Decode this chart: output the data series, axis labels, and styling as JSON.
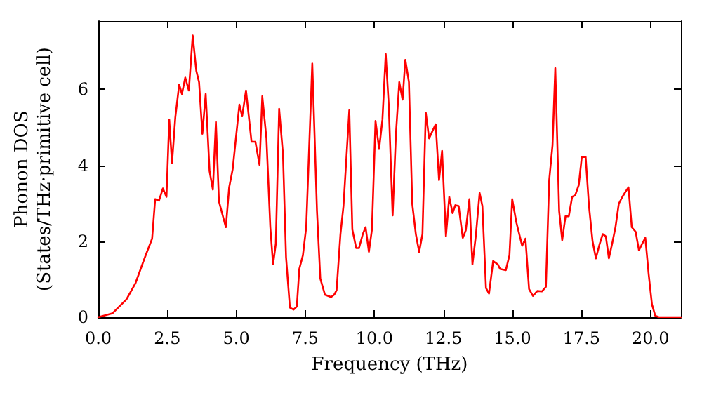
{
  "chart_data": {
    "type": "line",
    "xlabel": "Frequency (THz)",
    "ylabel": "Phonon DOS\n(States/THz·primitive cell)",
    "xlim": [
      0,
      21.1
    ],
    "ylim": [
      0,
      7.8
    ],
    "xticks": [
      {
        "value": 0,
        "label": "0.0"
      },
      {
        "value": 2.5,
        "label": "2.5"
      },
      {
        "value": 5,
        "label": "5.0"
      },
      {
        "value": 7.5,
        "label": "7.5"
      },
      {
        "value": 10,
        "label": "10.0"
      },
      {
        "value": 12.5,
        "label": "12.5"
      },
      {
        "value": 15,
        "label": "15.0"
      },
      {
        "value": 17.5,
        "label": "17.5"
      },
      {
        "value": 20,
        "label": "20.0"
      }
    ],
    "yticks": [
      0,
      2,
      4,
      6
    ],
    "grid": false,
    "marker": "none",
    "line_style": "solid",
    "series": [
      {
        "color": "#ff0000",
        "x": [
          0,
          0.51,
          1.02,
          1.35,
          1.69,
          1.95,
          2.06,
          2.2,
          2.34,
          2.47,
          2.57,
          2.67,
          2.79,
          2.93,
          3.03,
          3.15,
          3.28,
          3.42,
          3.55,
          3.65,
          3.77,
          3.89,
          4.03,
          4.15,
          4.26,
          4.37,
          4.62,
          4.74,
          4.87,
          5.11,
          5.21,
          5.35,
          5.55,
          5.69,
          5.84,
          5.94,
          6.09,
          6.23,
          6.33,
          6.43,
          6.55,
          6.69,
          6.8,
          6.94,
          7.07,
          7.19,
          7.28,
          7.41,
          7.53,
          7.75,
          7.92,
          8.04,
          8.21,
          8.43,
          8.54,
          8.63,
          8.77,
          8.88,
          9.09,
          9.2,
          9.34,
          9.44,
          9.58,
          9.68,
          9.8,
          9.91,
          10.04,
          10.17,
          10.29,
          10.41,
          10.52,
          10.66,
          10.78,
          10.9,
          11.02,
          11.12,
          11.25,
          11.37,
          11.5,
          11.62,
          11.74,
          11.86,
          11.98,
          12.1,
          12.22,
          12.34,
          12.45,
          12.59,
          12.71,
          12.83,
          12.93,
          13.05,
          13.2,
          13.31,
          13.44,
          13.55,
          13.67,
          13.81,
          13.91,
          14.04,
          14.15,
          14.3,
          14.47,
          14.55,
          14.76,
          14.89,
          14.99,
          15.14,
          15.35,
          15.47,
          15.6,
          15.74,
          15.9,
          16.07,
          16.21,
          16.33,
          16.45,
          16.55,
          16.69,
          16.8,
          16.92,
          17.04,
          17.16,
          17.27,
          17.4,
          17.51,
          17.65,
          17.77,
          17.9,
          18.02,
          18.16,
          18.27,
          18.38,
          18.49,
          18.61,
          18.73,
          18.85,
          18.98,
          19.09,
          19.2,
          19.32,
          19.46,
          19.58,
          19.7,
          19.81,
          19.93,
          20.05,
          20.17,
          20.3,
          21.1
        ],
        "values": [
          0,
          0.1,
          0.47,
          0.9,
          1.58,
          2.07,
          3.11,
          3.07,
          3.39,
          3.17,
          5.2,
          4.06,
          5.26,
          6.13,
          5.88,
          6.31,
          5.97,
          7.42,
          6.49,
          6.19,
          4.83,
          5.88,
          3.85,
          3.36,
          5.14,
          3.05,
          2.37,
          3.42,
          3.91,
          5.6,
          5.29,
          5.97,
          4.62,
          4.62,
          4.01,
          5.82,
          4.71,
          2.37,
          1.39,
          1.94,
          5.49,
          4.28,
          1.58,
          0.25,
          0.2,
          0.28,
          1.27,
          1.63,
          2.37,
          6.68,
          2.8,
          1.02,
          0.59,
          0.53,
          0.59,
          0.71,
          2.19,
          2.93,
          5.45,
          2.31,
          1.82,
          1.82,
          2.19,
          2.37,
          1.72,
          2.31,
          5.17,
          4.43,
          5.2,
          6.93,
          5.57,
          2.68,
          4.83,
          6.19,
          5.73,
          6.78,
          6.19,
          2.99,
          2.19,
          1.72,
          2.19,
          5.39,
          4.71,
          4.9,
          5.08,
          3.61,
          4.38,
          2.13,
          3.17,
          2.74,
          2.95,
          2.93,
          2.09,
          2.29,
          3.11,
          1.39,
          2.13,
          3.27,
          2.93,
          0.77,
          0.62,
          1.48,
          1.39,
          1.27,
          1.24,
          1.63,
          3.11,
          2.5,
          1.88,
          2.07,
          0.74,
          0.56,
          0.69,
          0.68,
          0.8,
          3.61,
          4.53,
          6.56,
          2.8,
          2.03,
          2.66,
          2.66,
          3.17,
          3.21,
          3.48,
          4.22,
          4.22,
          2.93,
          2.0,
          1.55,
          1.94,
          2.19,
          2.13,
          1.55,
          1.94,
          2.37,
          2.99,
          3.17,
          3.3,
          3.42,
          2.37,
          2.25,
          1.76,
          1.94,
          2.09,
          1.14,
          0.34,
          0.04,
          0,
          0
        ]
      }
    ]
  }
}
